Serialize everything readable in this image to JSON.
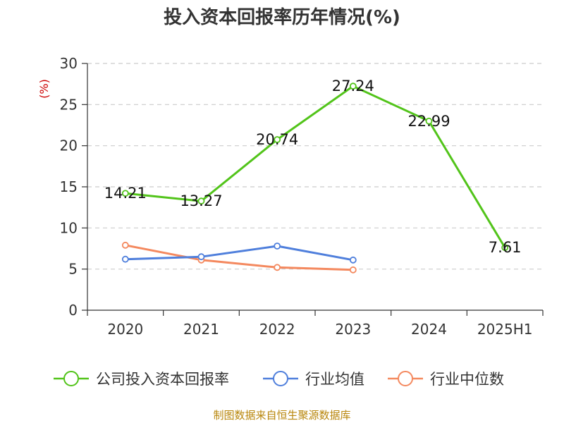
{
  "chart_data": {
    "type": "line",
    "title": "投入资本回报率历年情况(%)",
    "ylabel": "(%)",
    "xlabel": "",
    "categories": [
      "2020",
      "2021",
      "2022",
      "2023",
      "2024",
      "2025H1"
    ],
    "ylim": [
      0,
      30
    ],
    "yticks": [
      0,
      5,
      10,
      15,
      20,
      25,
      30
    ],
    "grid": true,
    "legend_position": "bottom",
    "series": [
      {
        "name": "公司投入资本回报率",
        "color": "#52c41a",
        "values": [
          14.21,
          13.27,
          20.74,
          27.24,
          22.99,
          7.61
        ],
        "labels": [
          "14.21",
          "13.27",
          "20.74",
          "27.24",
          "22.99",
          "7.61"
        ]
      },
      {
        "name": "行业均值",
        "color": "#4f7fdc",
        "values": [
          6.2,
          6.5,
          7.8,
          6.1,
          null,
          null
        ]
      },
      {
        "name": "行业中位数",
        "color": "#f4895f",
        "values": [
          7.9,
          6.1,
          5.2,
          4.9,
          null,
          null
        ]
      }
    ]
  },
  "source": "制图数据来自恒生聚源数据库"
}
